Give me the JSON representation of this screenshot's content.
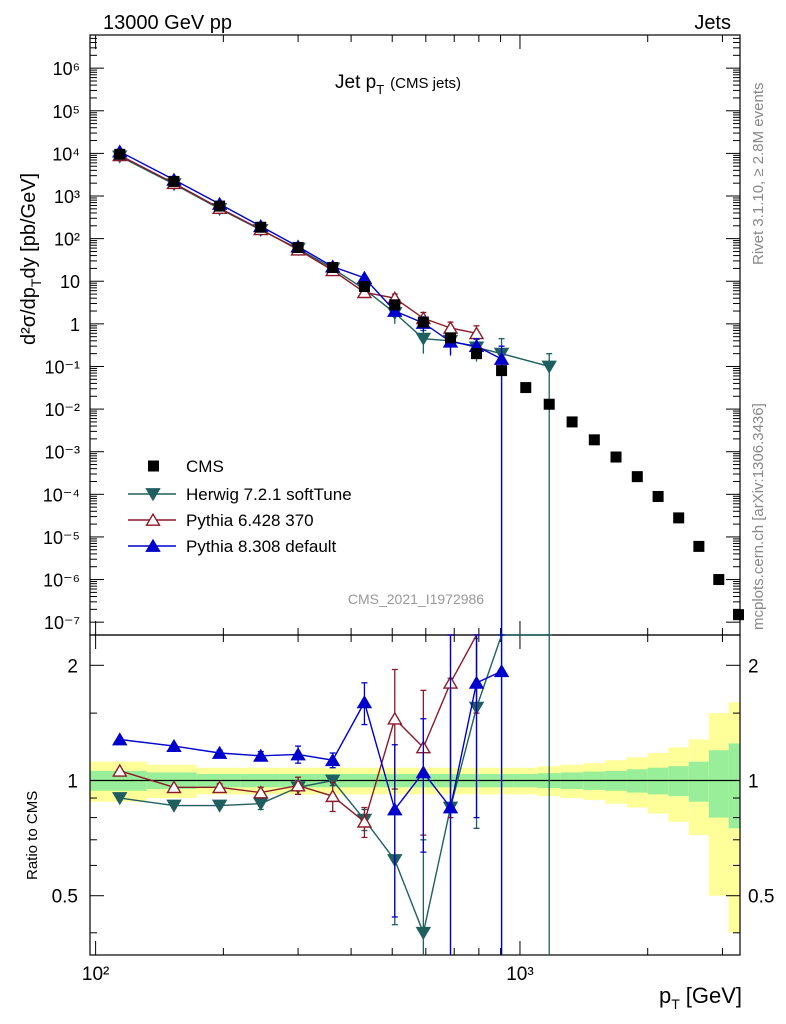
{
  "header": {
    "left": "13000 GeV pp",
    "right": "Jets",
    "side_rivet": "Rivet 3.1.10, ≥ 2.8M events",
    "side_mcplots": "mcplots.cern.ch [arXiv:1306.3436]",
    "analysis_id": "CMS_2021_I1972986"
  },
  "chart_data": {
    "type": "scatter",
    "title_main": "Jet p",
    "title_sub": "T",
    "title_paren": "(CMS jets)",
    "xlabel_main": "p",
    "xlabel_sub": "T",
    "xlabel_unit": "[GeV]",
    "ylabel_main": "d²σ/dp",
    "ylabel_sub": "T",
    "ylabel_unit": "dy [pb/GeV]",
    "ratio_ylabel": "Ratio to CMS",
    "x_scale": "log",
    "xlim": [
      97,
      3300
    ],
    "ylim": [
      5e-08,
      6000000.0
    ],
    "ratio_ylim": [
      0.35,
      2.4
    ],
    "x_tick_labels": [
      "10²",
      "10³"
    ],
    "main_y_tick_labels": [
      "10⁻⁷",
      "10⁻⁶",
      "10⁻⁵",
      "10⁻⁴",
      "10⁻³",
      "10⁻²",
      "10⁻¹",
      "1",
      "10",
      "10²",
      "10³",
      "10⁴",
      "10⁵",
      "10⁶"
    ],
    "ratio_y_tick_labels": [
      "0.5",
      "1",
      "2"
    ],
    "legend_position": "lower-left",
    "cms": {
      "name": "CMS",
      "color": "#000000",
      "x": [
        114,
        153,
        196,
        245,
        300,
        362,
        430,
        507,
        592,
        686,
        790,
        905,
        1032,
        1172,
        1327,
        1497,
        1684,
        1890,
        2116,
        2366,
        2640,
        2941,
        3273
      ],
      "y": [
        9500,
        2200,
        580,
        185,
        62,
        21,
        7.5,
        2.8,
        1.1,
        0.47,
        0.2,
        0.08,
        0.032,
        0.013,
        0.005,
        0.0019,
        0.00075,
        0.00026,
        8.9e-05,
        2.8e-05,
        6e-06,
        1e-06,
        1.5e-07
      ],
      "band_inner": [
        0.06,
        0.05,
        0.04,
        0.04,
        0.04,
        0.04,
        0.04,
        0.04,
        0.04,
        0.04,
        0.04,
        0.04,
        0.04,
        0.045,
        0.05,
        0.055,
        0.06,
        0.07,
        0.08,
        0.09,
        0.12,
        0.2,
        0.25
      ],
      "band_outer": [
        0.12,
        0.1,
        0.08,
        0.08,
        0.08,
        0.08,
        0.08,
        0.08,
        0.08,
        0.08,
        0.08,
        0.08,
        0.08,
        0.09,
        0.1,
        0.11,
        0.13,
        0.15,
        0.18,
        0.22,
        0.28,
        0.5,
        0.6
      ]
    },
    "series": [
      {
        "name": "Herwig 7.2.1 softTune",
        "color": "#1f5f5f",
        "marker": "triangle-down",
        "x": [
          114,
          153,
          196,
          245,
          300,
          362,
          430,
          507,
          592,
          686,
          790,
          905,
          1172
        ],
        "y": [
          8500,
          1900,
          500,
          160,
          58,
          20,
          6.5,
          1.8,
          0.45,
          0.4,
          0.28,
          0.2,
          0.1
        ],
        "yerr": [
          0,
          0,
          0,
          0,
          0,
          0,
          0.5,
          0.8,
          0.25,
          0.2,
          0.15,
          0.25,
          0.1
        ],
        "ratio": [
          0.9,
          0.86,
          0.86,
          0.87,
          0.96,
          1.0,
          0.79,
          0.62,
          0.4,
          0.85,
          1.55,
          2.5,
          3.0
        ],
        "ratio_err": [
          0.01,
          0.01,
          0.01,
          0.03,
          0.04,
          0.03,
          0.05,
          0.2,
          0.3,
          1.0,
          0.8,
          3.0,
          3.0
        ]
      },
      {
        "name": "Pythia 6.428 370",
        "color": "#8b1a2a",
        "marker": "triangle-up-open",
        "x": [
          114,
          153,
          196,
          245,
          300,
          362,
          430,
          507,
          592,
          686,
          790
        ],
        "y": [
          9000,
          2000,
          520,
          165,
          55,
          18,
          5.5,
          4.0,
          1.35,
          0.8,
          0.6
        ],
        "yerr": [
          0,
          0,
          0,
          0,
          0,
          0,
          0.8,
          1.0,
          0.5,
          0.3,
          0.3
        ],
        "ratio": [
          1.06,
          0.96,
          0.96,
          0.93,
          0.97,
          0.91,
          0.78,
          1.45,
          1.22,
          1.8,
          3.0
        ],
        "ratio_err": [
          0.01,
          0.01,
          0.02,
          0.03,
          0.05,
          0.08,
          0.07,
          0.5,
          0.5,
          1.0,
          1.5
        ]
      },
      {
        "name": "Pythia 8.308 default",
        "color": "#0000cc",
        "marker": "triangle-up",
        "x": [
          114,
          153,
          196,
          245,
          300,
          362,
          430,
          507,
          592,
          686,
          790,
          905
        ],
        "y": [
          11000,
          2400,
          650,
          195,
          65,
          22,
          12,
          2.0,
          1.05,
          0.38,
          0.3,
          0.15
        ],
        "yerr": [
          0,
          0,
          0,
          0,
          0,
          0,
          0,
          0.5,
          0.4,
          0.2,
          0.15,
          0.15
        ],
        "ratio": [
          1.28,
          1.23,
          1.18,
          1.16,
          1.17,
          1.13,
          1.6,
          0.84,
          1.05,
          0.85,
          1.8,
          1.93
        ],
        "ratio_err": [
          0.01,
          0.01,
          0.02,
          0.03,
          0.06,
          0.05,
          0.2,
          0.4,
          0.4,
          2.0,
          1.0,
          3.0
        ]
      }
    ]
  }
}
